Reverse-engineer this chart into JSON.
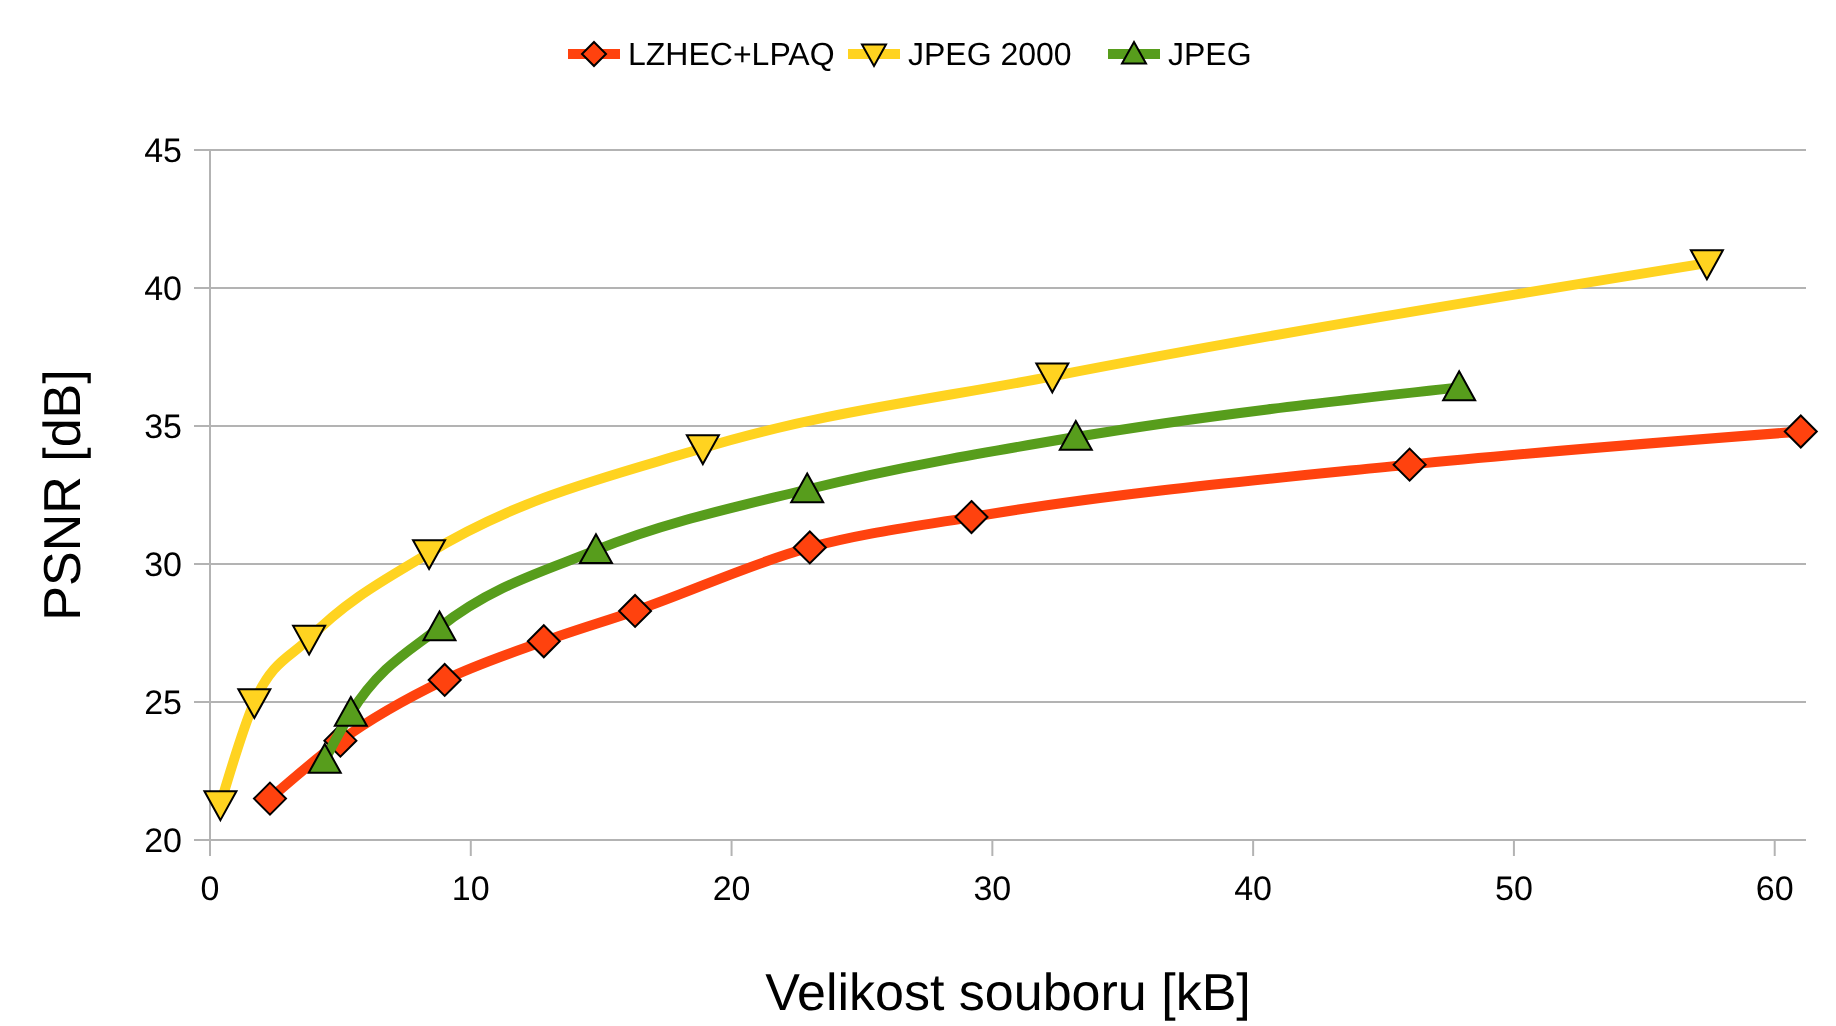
{
  "chart_data": {
    "type": "line",
    "xlabel": "Velikost souboru [kB]",
    "ylabel": "PSNR [dB]",
    "xlim": [
      0,
      61.2
    ],
    "xticks": [
      0,
      10,
      20,
      30,
      40,
      50,
      60
    ],
    "ylim": [
      20,
      45
    ],
    "yticks": [
      20,
      25,
      30,
      35,
      40,
      45
    ],
    "grid": "y",
    "legend": "top",
    "line_style": "solid",
    "series": [
      {
        "name": "LZHEC+LPAQ",
        "color": "#ff420e",
        "marker": "diamond",
        "x": [
          2.3,
          5.0,
          9.0,
          12.8,
          16.3,
          23.0,
          29.2,
          46.0,
          61.0
        ],
        "values": [
          21.5,
          23.6,
          25.8,
          27.2,
          28.3,
          30.6,
          31.7,
          33.6,
          34.8
        ]
      },
      {
        "name": "JPEG 2000",
        "color": "#ffd320",
        "marker": "triangle-down",
        "x": [
          0.4,
          1.7,
          3.8,
          8.4,
          18.9,
          32.3,
          57.4
        ],
        "values": [
          21.3,
          25.0,
          27.3,
          30.4,
          34.2,
          36.8,
          40.9
        ]
      },
      {
        "name": "JPEG",
        "color": "#579d1c",
        "marker": "triangle",
        "x": [
          4.4,
          5.4,
          8.8,
          14.8,
          22.9,
          33.2,
          47.9
        ],
        "values": [
          22.9,
          24.6,
          27.7,
          30.5,
          32.7,
          34.6,
          36.4
        ]
      }
    ]
  }
}
